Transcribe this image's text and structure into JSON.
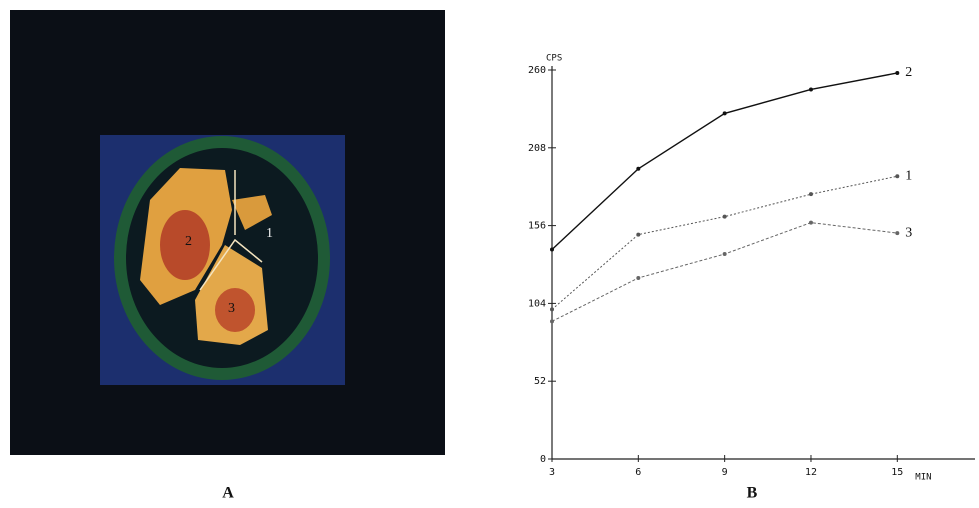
{
  "panel_labels": [
    "A",
    "B"
  ],
  "image_regions": [
    "1",
    "2",
    "3"
  ],
  "chart_data": {
    "type": "line",
    "y_label": "CPS",
    "x_label": "MIN",
    "xlim": [
      3,
      17.7
    ],
    "xticks": [
      3,
      6,
      9,
      12,
      15
    ],
    "ylim": [
      0,
      260
    ],
    "yticks": [
      0,
      52,
      104,
      156,
      208,
      260
    ],
    "series": [
      {
        "name": "2",
        "color": "#111111",
        "x": [
          3,
          6,
          9,
          12,
          15
        ],
        "values": [
          140,
          194,
          231,
          247,
          258
        ]
      },
      {
        "name": "1",
        "color": "#555555",
        "x": [
          3,
          6,
          9,
          12,
          15
        ],
        "values": [
          100,
          150,
          162,
          177,
          189
        ]
      },
      {
        "name": "3",
        "color": "#666666",
        "x": [
          3,
          6,
          9,
          12,
          15
        ],
        "values": [
          92,
          121,
          137,
          158,
          151
        ]
      }
    ]
  }
}
